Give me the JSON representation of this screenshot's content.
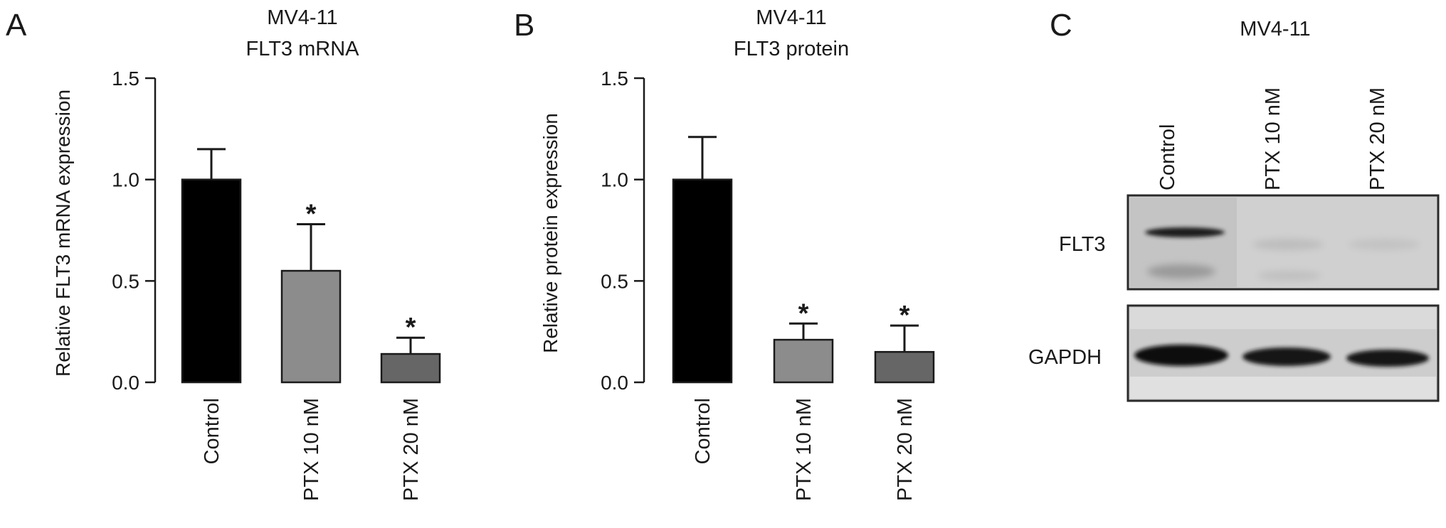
{
  "chart_data": [
    {
      "panel": "A",
      "type": "bar",
      "title_lines": [
        "MV4-11",
        "FLT3 mRNA"
      ],
      "xlabel": "",
      "ylabel": "Relative FLT3 mRNA expression",
      "ylim": [
        0,
        1.5
      ],
      "yticks": [
        0.0,
        0.5,
        1.0,
        1.5
      ],
      "ytick_labels": [
        "0.0",
        "0.5",
        "1.0",
        "1.5"
      ],
      "categories": [
        "Control",
        "PTX 10 nM",
        "PTX 20 nM"
      ],
      "values": [
        1.0,
        0.55,
        0.14
      ],
      "errors": [
        0.15,
        0.23,
        0.08
      ],
      "significance": [
        "",
        "*",
        "*"
      ],
      "colors": [
        "#000000",
        "#8c8c8c",
        "#666666"
      ],
      "grid": false,
      "legend": "none"
    },
    {
      "panel": "B",
      "type": "bar",
      "title_lines": [
        "MV4-11",
        "FLT3 protein"
      ],
      "xlabel": "",
      "ylabel": "Relative protein expression",
      "ylim": [
        0,
        1.5
      ],
      "yticks": [
        0.0,
        0.5,
        1.0,
        1.5
      ],
      "ytick_labels": [
        "0.0",
        "0.5",
        "1.0",
        "1.5"
      ],
      "categories": [
        "Control",
        "PTX 10 nM",
        "PTX 20 nM"
      ],
      "values": [
        1.0,
        0.21,
        0.15
      ],
      "errors": [
        0.21,
        0.08,
        0.13
      ],
      "significance": [
        "",
        "*",
        "*"
      ],
      "colors": [
        "#000000",
        "#8c8c8c",
        "#666666"
      ],
      "grid": false,
      "legend": "none"
    }
  ],
  "blot": {
    "panel": "C",
    "title": "MV4-11",
    "lanes": [
      "Control",
      "PTX 10 nM",
      "PTX 20 nM"
    ],
    "rows": [
      {
        "label": "FLT3",
        "band_intensity": [
          0.85,
          0.04,
          0.03
        ]
      },
      {
        "label": "GAPDH",
        "band_intensity": [
          1.0,
          0.9,
          0.85
        ]
      }
    ]
  }
}
